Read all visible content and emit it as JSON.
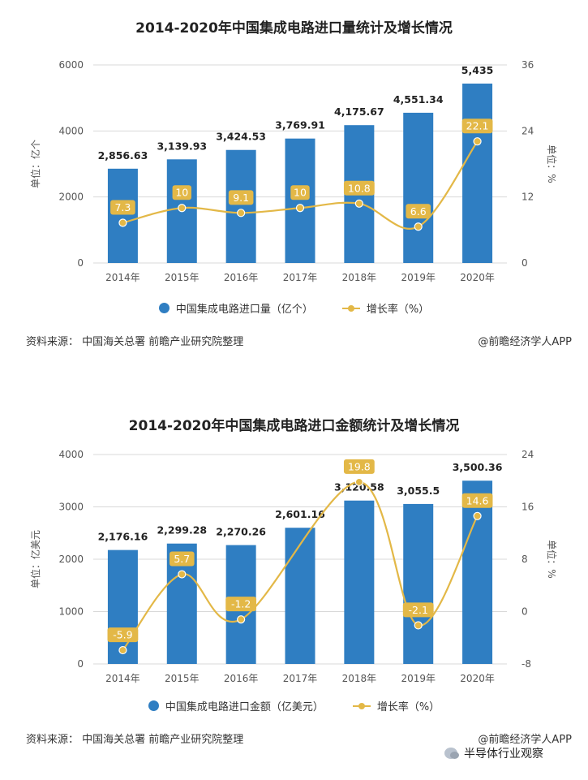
{
  "colors": {
    "bar": "#2f7ec2",
    "line": "#e3b847",
    "label_bg": "#e3b847"
  },
  "panels": [
    {
      "title": "2014-2020年中国集成电路进口量统计及增长情况",
      "legend": {
        "bar_label": "中国集成电路进口量（亿个）",
        "line_label": "增长率（%）"
      },
      "left_axis_title": "单位：亿个",
      "right_axis_title": "单位：%",
      "source": "资料来源：  中国海关总署 前瞻产业研究院整理",
      "brand": "@前瞻经济学人APP"
    },
    {
      "title": "2014-2020年中国集成电路进口金额统计及增长情况",
      "legend": {
        "bar_label": "中国集成电路进口金额（亿美元）",
        "line_label": "增长率（%）"
      },
      "left_axis_title": "单位：亿美元",
      "right_axis_title": "单位：%",
      "source": "资料来源：  中国海关总署 前瞻产业研究院整理",
      "brand": "@前瞻经济学人APP"
    }
  ],
  "wechat_caption": "半导体行业观察",
  "chart_data": [
    {
      "type": "bar+line",
      "categories": [
        "2014年",
        "2015年",
        "2016年",
        "2017年",
        "2018年",
        "2019年",
        "2020年"
      ],
      "bar_value_labels": [
        "2,856.63",
        "3,139.93",
        "3,424.53",
        "3,769.91",
        "4,175.67",
        "4,551.34",
        "5,435"
      ],
      "series": [
        {
          "name": "中国集成电路进口量（亿个）",
          "type": "bar",
          "axis": "left",
          "values": [
            2856.63,
            3139.93,
            3424.53,
            3769.91,
            4175.67,
            4551.34,
            5435
          ]
        },
        {
          "name": "增长率（%）",
          "type": "line",
          "axis": "right",
          "values": [
            7.3,
            10,
            9.1,
            10,
            10.8,
            6.6,
            22.1
          ]
        }
      ],
      "rate_labels": [
        "7.3",
        "10",
        "9.1",
        "10",
        "10.8",
        "6.6",
        "22.1"
      ],
      "left_ylim": [
        0,
        6000
      ],
      "left_ticks": [
        "0",
        "2000",
        "4000",
        "6000"
      ],
      "right_ylim": [
        0,
        36
      ],
      "right_ticks": [
        "0",
        "12",
        "24",
        "36"
      ],
      "grid": true,
      "legend_position": "bottom"
    },
    {
      "type": "bar+line",
      "categories": [
        "2014年",
        "2015年",
        "2016年",
        "2017年",
        "2018年",
        "2019年",
        "2020年"
      ],
      "bar_value_labels": [
        "2,176.16",
        "2,299.28",
        "2,270.26",
        "2,601.16",
        "3,120.58",
        "3,055.5",
        "3,500.36"
      ],
      "series": [
        {
          "name": "中国集成电路进口金额（亿美元）",
          "type": "bar",
          "axis": "left",
          "values": [
            2176.16,
            2299.28,
            2270.26,
            2601.16,
            3120.58,
            3055.5,
            3500.36
          ]
        },
        {
          "name": "增长率（%）",
          "type": "line",
          "axis": "right",
          "values": [
            -5.9,
            5.7,
            -1.2,
            null,
            19.8,
            -2.1,
            14.6
          ]
        }
      ],
      "rate_labels": [
        "-5.9",
        "5.7",
        "-1.2",
        "",
        "19.8",
        "-2.1",
        "14.6"
      ],
      "left_ylim": [
        0,
        4000
      ],
      "left_ticks": [
        "0",
        "1000",
        "2000",
        "3000",
        "4000"
      ],
      "right_ylim": [
        -8,
        24
      ],
      "right_ticks": [
        "-8",
        "0",
        "8",
        "16",
        "24"
      ],
      "grid": true,
      "legend_position": "bottom"
    }
  ]
}
